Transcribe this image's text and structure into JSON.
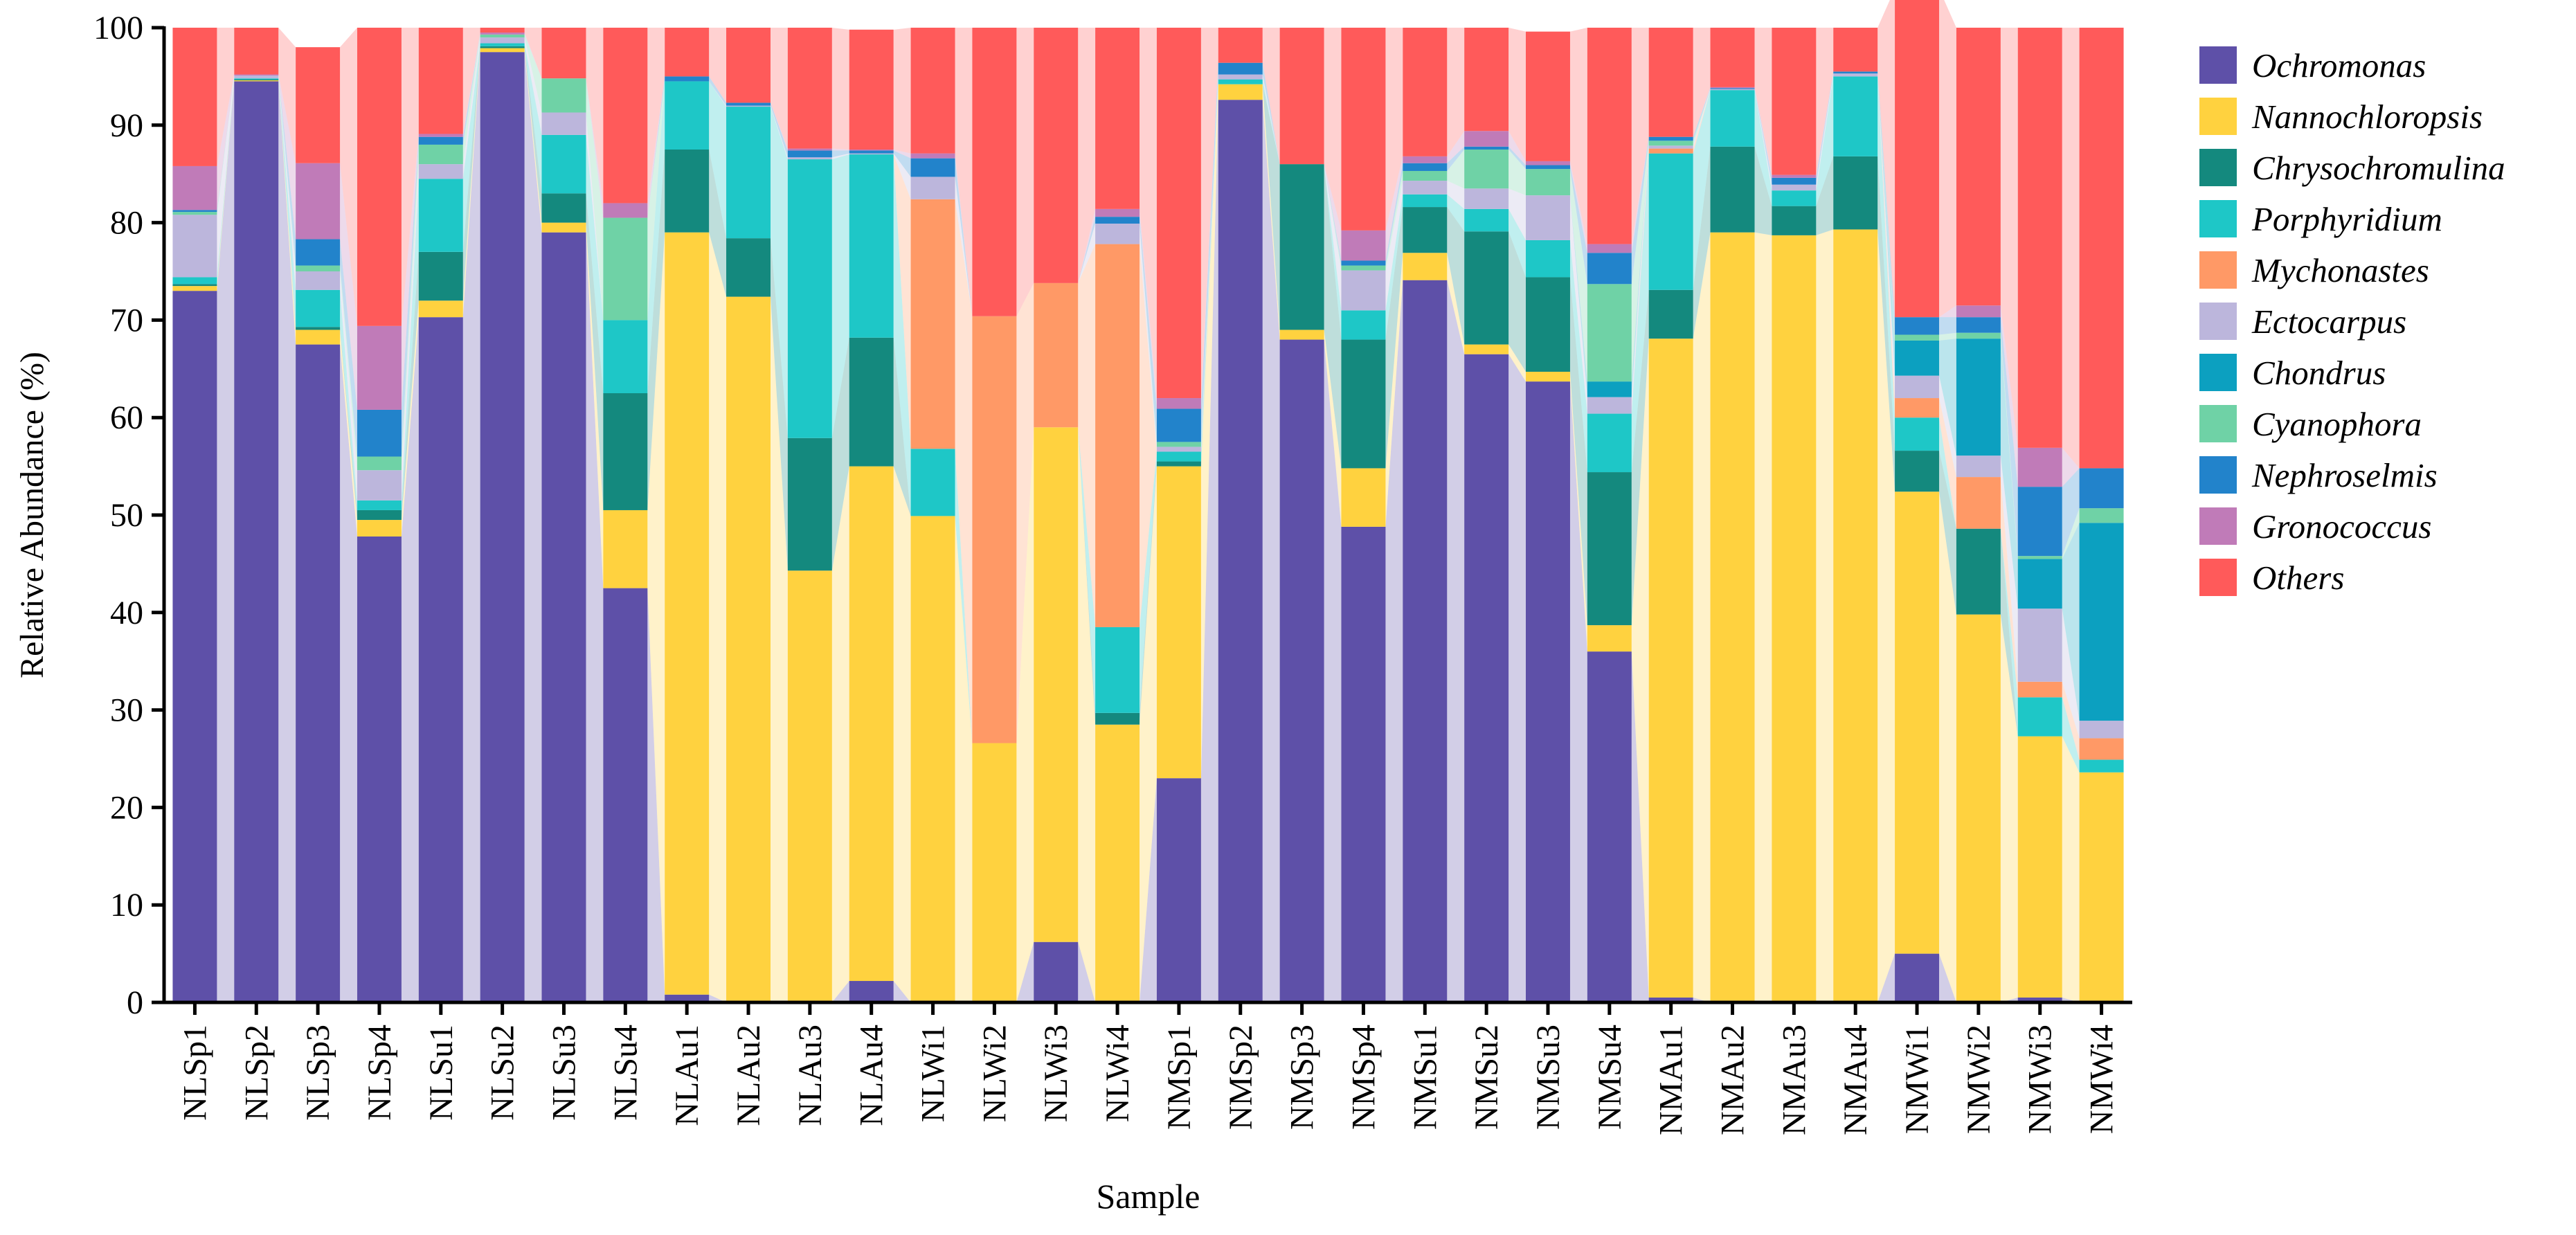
{
  "chart_data": {
    "type": "bar",
    "stacked": true,
    "title": "",
    "xlabel": "Sample",
    "ylabel": "Relative Abundance (%)",
    "ylim": [
      0,
      100
    ],
    "yticks": [
      0,
      10,
      20,
      30,
      40,
      50,
      60,
      70,
      80,
      90,
      100
    ],
    "legend_position": "right",
    "categories": [
      "NLSp1",
      "NLSp2",
      "NLSp3",
      "NLSp4",
      "NLSu1",
      "NLSu2",
      "NLSu3",
      "NLSu4",
      "NLAu1",
      "NLAu2",
      "NLAu3",
      "NLAu4",
      "NLWi1",
      "NLWi2",
      "NLWi3",
      "NLWi4",
      "NMSp1",
      "NMSp2",
      "NMSp3",
      "NMSp4",
      "NMSu1",
      "NMSu2",
      "NMSu3",
      "NMSu4",
      "NMAu1",
      "NMAu2",
      "NMAu3",
      "NMAu4",
      "NMWi1",
      "NMWi2",
      "NMWi3",
      "NMWi4"
    ],
    "series": [
      {
        "name": "Ochromonas",
        "color": "#5E50A8",
        "values": [
          73.0,
          94.5,
          67.5,
          47.8,
          70.3,
          97.5,
          79.0,
          42.5,
          0.8,
          0.0,
          0.0,
          2.2,
          0.0,
          0.0,
          6.2,
          0.0,
          23.0,
          92.6,
          68.0,
          48.8,
          74.1,
          66.5,
          63.7,
          36.0,
          0.5,
          0.0,
          0.0,
          0.0,
          5.0,
          0.0,
          0.5,
          0.0
        ]
      },
      {
        "name": "Nannochloropsis",
        "color": "#FFD23F",
        "values": [
          0.5,
          0.1,
          1.5,
          1.7,
          1.7,
          0.4,
          1.0,
          8.0,
          78.2,
          72.4,
          44.3,
          52.8,
          49.9,
          26.6,
          52.8,
          28.5,
          32.0,
          1.6,
          1.0,
          6.0,
          2.8,
          1.0,
          1.0,
          2.7,
          67.6,
          79.0,
          78.7,
          79.3,
          47.4,
          39.8,
          26.8,
          23.6
        ]
      },
      {
        "name": "Chrysochromulina",
        "color": "#14897E",
        "values": [
          0.2,
          0.1,
          0.3,
          1.0,
          5.0,
          0.2,
          3.0,
          12.0,
          8.5,
          6.0,
          13.6,
          13.2,
          0.0,
          0.0,
          0.0,
          1.2,
          0.5,
          0.0,
          17.0,
          13.2,
          4.7,
          11.6,
          9.7,
          15.7,
          5.0,
          8.8,
          3.0,
          7.5,
          4.2,
          8.8,
          0.0,
          0.0
        ]
      },
      {
        "name": "Porphyridium",
        "color": "#1EC7C7",
        "values": [
          0.7,
          0.1,
          3.8,
          1.0,
          7.5,
          0.3,
          6.0,
          7.5,
          7.0,
          13.5,
          28.6,
          18.8,
          6.9,
          0.0,
          0.0,
          8.8,
          1.0,
          0.5,
          0.0,
          3.0,
          1.3,
          2.3,
          3.8,
          6.0,
          14.0,
          5.8,
          1.6,
          8.2,
          3.4,
          0.0,
          4.0,
          1.3
        ]
      },
      {
        "name": "Mychonastes",
        "color": "#FF9966",
        "values": [
          0.0,
          0.0,
          0.0,
          0.0,
          0.0,
          0.0,
          0.0,
          0.0,
          0.0,
          0.0,
          0.0,
          0.0,
          25.6,
          43.8,
          14.8,
          39.3,
          0.0,
          0.0,
          0.0,
          0.0,
          0.0,
          0.0,
          0.0,
          0.0,
          0.5,
          0.0,
          0.0,
          0.0,
          2.0,
          5.3,
          1.6,
          2.2
        ]
      },
      {
        "name": "Ectocarpus",
        "color": "#BCB6DC",
        "values": [
          6.4,
          0.3,
          1.9,
          3.1,
          1.5,
          0.6,
          2.3,
          0.0,
          0.0,
          0.1,
          0.2,
          0.1,
          2.3,
          0.0,
          0.0,
          2.1,
          0.5,
          0.5,
          0.0,
          4.1,
          1.4,
          2.1,
          4.6,
          1.7,
          0.3,
          0.1,
          0.6,
          0.3,
          2.3,
          2.2,
          7.5,
          1.8
        ]
      },
      {
        "name": "Chondrus",
        "color": "#0CA0C0",
        "values": [
          0.0,
          0.0,
          0.0,
          0.0,
          0.0,
          0.0,
          0.0,
          0.0,
          0.0,
          0.0,
          0.0,
          0.0,
          0.0,
          0.0,
          0.0,
          0.0,
          0.0,
          0.0,
          0.0,
          0.0,
          0.0,
          0.0,
          0.0,
          1.6,
          0.0,
          0.0,
          0.0,
          0.0,
          3.6,
          12.0,
          5.1,
          20.3
        ]
      },
      {
        "name": "Cyanophora",
        "color": "#6FD2A6",
        "values": [
          0.3,
          0.0,
          0.6,
          1.4,
          2.0,
          0.3,
          3.5,
          10.5,
          0.0,
          0.0,
          0.0,
          0.0,
          0.0,
          0.0,
          0.0,
          0.0,
          0.5,
          0.0,
          0.0,
          0.5,
          1.0,
          4.0,
          2.7,
          10.0,
          0.5,
          0.0,
          0.0,
          0.0,
          0.6,
          0.6,
          0.3,
          1.5
        ]
      },
      {
        "name": "Nephroselmis",
        "color": "#2283CB",
        "values": [
          0.2,
          0.0,
          2.7,
          4.8,
          0.8,
          0.0,
          0.0,
          0.0,
          0.5,
          0.3,
          0.7,
          0.3,
          1.9,
          0.0,
          0.0,
          0.7,
          3.4,
          1.2,
          0.0,
          0.5,
          0.8,
          0.3,
          0.4,
          3.2,
          0.4,
          0.1,
          0.7,
          0.2,
          1.8,
          1.6,
          7.1,
          4.1
        ]
      },
      {
        "name": "Gronococcus",
        "color": "#C07BB8",
        "values": [
          4.5,
          0.1,
          7.8,
          8.6,
          0.3,
          0.2,
          0.0,
          1.5,
          0.0,
          0.0,
          0.2,
          0.1,
          0.5,
          0.0,
          0.0,
          0.8,
          1.1,
          0.0,
          0.0,
          3.1,
          0.7,
          1.6,
          0.4,
          0.9,
          0.0,
          0.1,
          0.3,
          0.0,
          0.0,
          1.2,
          4.0,
          0.0
        ]
      },
      {
        "name": "Others",
        "color": "#FF5A5A",
        "values": [
          14.2,
          4.8,
          11.9,
          30.6,
          10.9,
          0.5,
          5.2,
          18.0,
          5.0,
          7.7,
          12.4,
          12.3,
          12.9,
          29.6,
          26.2,
          18.6,
          38.0,
          3.6,
          14.0,
          20.8,
          13.2,
          10.6,
          13.3,
          22.2,
          11.2,
          6.1,
          15.1,
          4.5,
          33.7,
          28.5,
          43.1,
          45.2
        ]
      }
    ]
  }
}
